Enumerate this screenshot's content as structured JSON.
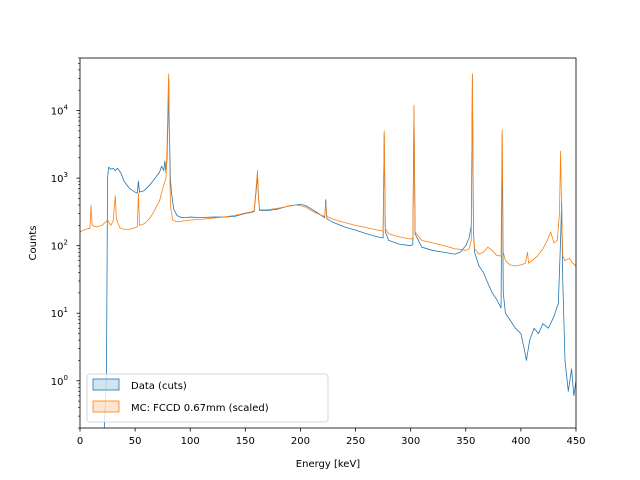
{
  "chart_data": {
    "type": "line",
    "xlabel": "Energy [keV]",
    "ylabel": "Counts",
    "xlim": [
      0,
      450
    ],
    "ylim": [
      0.2,
      60000
    ],
    "yscale": "log",
    "grid": false,
    "legend_position": "lower-left",
    "x_ticks": [
      0,
      50,
      100,
      150,
      200,
      250,
      300,
      350,
      400,
      450
    ],
    "x_tick_labels": [
      "0",
      "50",
      "100",
      "150",
      "200",
      "250",
      "300",
      "350",
      "400",
      "450"
    ],
    "y_ticks": [
      1,
      10,
      100,
      1000,
      10000
    ],
    "y_tick_labels": [
      {
        "base": "10",
        "exp": "0"
      },
      {
        "base": "10",
        "exp": "1"
      },
      {
        "base": "10",
        "exp": "2"
      },
      {
        "base": "10",
        "exp": "3"
      },
      {
        "base": "10",
        "exp": "4"
      }
    ],
    "series": [
      {
        "name": "Data (cuts)",
        "color": "#1f77b4",
        "points": [
          [
            22,
            0.2
          ],
          [
            24,
            1.2
          ],
          [
            25,
            1000
          ],
          [
            26,
            1450
          ],
          [
            28,
            1350
          ],
          [
            30,
            1400
          ],
          [
            32,
            1300
          ],
          [
            34,
            1400
          ],
          [
            37,
            1200
          ],
          [
            40,
            900
          ],
          [
            45,
            700
          ],
          [
            50,
            620
          ],
          [
            52,
            600
          ],
          [
            53,
            900
          ],
          [
            54,
            620
          ],
          [
            58,
            650
          ],
          [
            62,
            750
          ],
          [
            66,
            900
          ],
          [
            70,
            1100
          ],
          [
            72,
            1200
          ],
          [
            74,
            1500
          ],
          [
            76,
            1300
          ],
          [
            77,
            1800
          ],
          [
            78,
            1200
          ],
          [
            79,
            2000
          ],
          [
            80,
            10000
          ],
          [
            80.5,
            30000
          ],
          [
            81,
            6000
          ],
          [
            82,
            1000
          ],
          [
            83,
            600
          ],
          [
            85,
            350
          ],
          [
            88,
            280
          ],
          [
            92,
            260
          ],
          [
            96,
            260
          ],
          [
            100,
            265
          ],
          [
            110,
            260
          ],
          [
            120,
            265
          ],
          [
            130,
            265
          ],
          [
            140,
            270
          ],
          [
            145,
            285
          ],
          [
            150,
            300
          ],
          [
            155,
            310
          ],
          [
            158,
            320
          ],
          [
            160,
            700
          ],
          [
            161,
            1100
          ],
          [
            162,
            500
          ],
          [
            163,
            330
          ],
          [
            170,
            330
          ],
          [
            180,
            350
          ],
          [
            190,
            390
          ],
          [
            196,
            400
          ],
          [
            200,
            410
          ],
          [
            205,
            390
          ],
          [
            210,
            350
          ],
          [
            215,
            310
          ],
          [
            222,
            260
          ],
          [
            223,
            480
          ],
          [
            224,
            250
          ],
          [
            230,
            220
          ],
          [
            240,
            190
          ],
          [
            250,
            170
          ],
          [
            260,
            150
          ],
          [
            270,
            135
          ],
          [
            275,
            130
          ],
          [
            276,
            4500
          ],
          [
            277,
            160
          ],
          [
            280,
            120
          ],
          [
            290,
            105
          ],
          [
            300,
            100
          ],
          [
            302,
            105
          ],
          [
            303,
            11000
          ],
          [
            304,
            150
          ],
          [
            310,
            95
          ],
          [
            320,
            85
          ],
          [
            330,
            80
          ],
          [
            340,
            75
          ],
          [
            345,
            80
          ],
          [
            350,
            100
          ],
          [
            353,
            130
          ],
          [
            355,
            200
          ],
          [
            356,
            33000
          ],
          [
            357,
            150
          ],
          [
            358,
            80
          ],
          [
            362,
            50
          ],
          [
            366,
            40
          ],
          [
            370,
            28
          ],
          [
            374,
            20
          ],
          [
            378,
            16
          ],
          [
            382,
            12
          ],
          [
            383,
            4500
          ],
          [
            384,
            20
          ],
          [
            386,
            10
          ],
          [
            390,
            8
          ],
          [
            395,
            6
          ],
          [
            400,
            5
          ],
          [
            403,
            3
          ],
          [
            405,
            2
          ],
          [
            408,
            4
          ],
          [
            412,
            6
          ],
          [
            416,
            5
          ],
          [
            420,
            7
          ],
          [
            425,
            6
          ],
          [
            430,
            9
          ],
          [
            434,
            14
          ],
          [
            436,
            120
          ],
          [
            437,
            450
          ],
          [
            438,
            30
          ],
          [
            440,
            2
          ],
          [
            443,
            0.7
          ],
          [
            446,
            1.5
          ],
          [
            448,
            0.6
          ],
          [
            450,
            1
          ]
        ]
      },
      {
        "name": "MC: FCCD 0.67mm (scaled)",
        "color": "#ff7f0e",
        "points": [
          [
            0,
            160
          ],
          [
            5,
            175
          ],
          [
            9,
            180
          ],
          [
            10,
            400
          ],
          [
            11,
            200
          ],
          [
            15,
            190
          ],
          [
            20,
            200
          ],
          [
            25,
            240
          ],
          [
            28,
            200
          ],
          [
            30,
            230
          ],
          [
            32,
            550
          ],
          [
            33,
            250
          ],
          [
            36,
            185
          ],
          [
            40,
            175
          ],
          [
            45,
            175
          ],
          [
            50,
            185
          ],
          [
            52,
            190
          ],
          [
            53,
            600
          ],
          [
            54,
            200
          ],
          [
            58,
            210
          ],
          [
            62,
            240
          ],
          [
            65,
            280
          ],
          [
            68,
            340
          ],
          [
            70,
            400
          ],
          [
            72,
            450
          ],
          [
            74,
            600
          ],
          [
            76,
            800
          ],
          [
            78,
            1000
          ],
          [
            79,
            3000
          ],
          [
            80,
            20000
          ],
          [
            80.5,
            35000
          ],
          [
            81,
            5000
          ],
          [
            82,
            400
          ],
          [
            84,
            240
          ],
          [
            88,
            225
          ],
          [
            92,
            230
          ],
          [
            100,
            240
          ],
          [
            110,
            245
          ],
          [
            120,
            255
          ],
          [
            130,
            265
          ],
          [
            140,
            280
          ],
          [
            145,
            290
          ],
          [
            150,
            305
          ],
          [
            155,
            315
          ],
          [
            158,
            330
          ],
          [
            160,
            800
          ],
          [
            161,
            1300
          ],
          [
            162,
            500
          ],
          [
            163,
            340
          ],
          [
            170,
            340
          ],
          [
            180,
            360
          ],
          [
            190,
            385
          ],
          [
            196,
            400
          ],
          [
            200,
            390
          ],
          [
            205,
            370
          ],
          [
            210,
            330
          ],
          [
            215,
            300
          ],
          [
            222,
            270
          ],
          [
            223,
            420
          ],
          [
            224,
            270
          ],
          [
            230,
            245
          ],
          [
            240,
            220
          ],
          [
            250,
            200
          ],
          [
            260,
            185
          ],
          [
            270,
            170
          ],
          [
            275,
            165
          ],
          [
            276,
            5000
          ],
          [
            277,
            180
          ],
          [
            280,
            150
          ],
          [
            290,
            135
          ],
          [
            300,
            125
          ],
          [
            302,
            130
          ],
          [
            303,
            12000
          ],
          [
            304,
            160
          ],
          [
            310,
            120
          ],
          [
            320,
            110
          ],
          [
            330,
            100
          ],
          [
            340,
            90
          ],
          [
            345,
            88
          ],
          [
            350,
            85
          ],
          [
            353,
            90
          ],
          [
            355,
            120
          ],
          [
            356,
            35000
          ],
          [
            357,
            150
          ],
          [
            358,
            90
          ],
          [
            362,
            75
          ],
          [
            366,
            80
          ],
          [
            370,
            95
          ],
          [
            374,
            85
          ],
          [
            378,
            72
          ],
          [
            382,
            70
          ],
          [
            383,
            5200
          ],
          [
            384,
            80
          ],
          [
            386,
            60
          ],
          [
            390,
            52
          ],
          [
            395,
            50
          ],
          [
            400,
            52
          ],
          [
            404,
            55
          ],
          [
            406,
            80
          ],
          [
            407,
            55
          ],
          [
            410,
            60
          ],
          [
            415,
            70
          ],
          [
            420,
            90
          ],
          [
            424,
            120
          ],
          [
            427,
            160
          ],
          [
            430,
            110
          ],
          [
            433,
            120
          ],
          [
            435,
            300
          ],
          [
            436,
            2500
          ],
          [
            437,
            300
          ],
          [
            438,
            70
          ],
          [
            440,
            60
          ],
          [
            444,
            65
          ],
          [
            447,
            55
          ],
          [
            450,
            50
          ]
        ]
      }
    ]
  },
  "legend": {
    "items": [
      {
        "label": "Data (cuts)",
        "color": "#1f77b4"
      },
      {
        "label": "MC: FCCD 0.67mm (scaled)",
        "color": "#ff7f0e"
      }
    ]
  }
}
